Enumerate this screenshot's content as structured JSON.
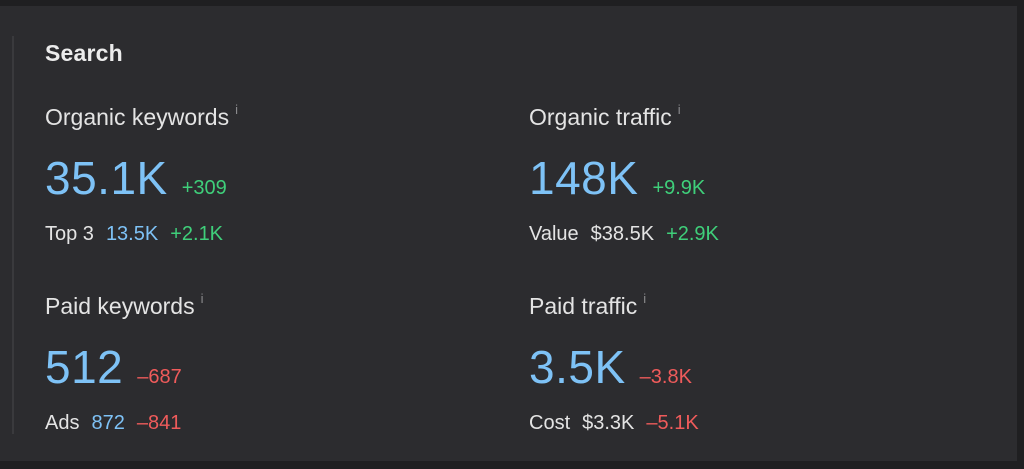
{
  "section": {
    "title": "Search",
    "info_glyph": "i"
  },
  "metrics": {
    "organic_keywords": {
      "label": "Organic keywords",
      "value": "35.1K",
      "delta": "+309",
      "sub_label": "Top 3",
      "sub_value": "13.5K",
      "sub_delta": "+2.1K"
    },
    "organic_traffic": {
      "label": "Organic traffic",
      "value": "148K",
      "delta": "+9.9K",
      "sub_label": "Value",
      "sub_value": "$38.5K",
      "sub_delta": "+2.9K"
    },
    "paid_keywords": {
      "label": "Paid keywords",
      "value": "512",
      "delta": "–687",
      "sub_label": "Ads",
      "sub_value": "872",
      "sub_delta": "–841"
    },
    "paid_traffic": {
      "label": "Paid traffic",
      "value": "3.5K",
      "delta": "–3.8K",
      "sub_label": "Cost",
      "sub_value": "$3.3K",
      "sub_delta": "–5.1K"
    }
  },
  "colors": {
    "value_blue": "#7ec2f6",
    "positive_green": "#3fcf7a",
    "negative_red": "#ef5b5b",
    "panel_bg": "#2c2c2f"
  }
}
